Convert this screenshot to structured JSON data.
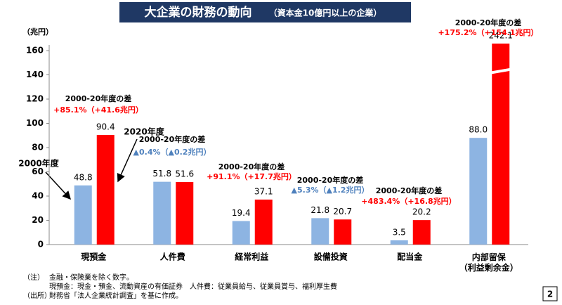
{
  "chart_data": {
    "type": "bar",
    "title": "大企業の財務の動向",
    "subtitle": "（資本金10億円以上の企業）",
    "y_unit": "（兆円）",
    "categories": [
      "現預金",
      "人件費",
      "経常利益",
      "設備投資",
      "配当金",
      "内部留保（利益剰余金）"
    ],
    "series": [
      {
        "name": "2000年度",
        "color": "#8db4e2",
        "values": [
          48.8,
          51.8,
          19.4,
          21.8,
          3.5,
          88.0
        ],
        "value_labels": [
          "48.8",
          "51.8",
          "19.4",
          "21.8",
          "3.5",
          "88.0"
        ]
      },
      {
        "name": "2020年度",
        "color": "#ff0000",
        "values": [
          90.4,
          51.6,
          37.1,
          20.7,
          20.2,
          242.1
        ],
        "value_labels": [
          "90.4",
          "51.6",
          "37.1",
          "20.7",
          "20.2",
          "242.1"
        ]
      }
    ],
    "ylim": [
      0,
      160
    ],
    "yticks": [
      0,
      20,
      40,
      60,
      80,
      100,
      120,
      140,
      160
    ],
    "annotations": [
      {
        "heading": "2000-20年度の差",
        "text": "+85.1%（+41.6兆円）",
        "color": "#ff0000"
      },
      {
        "heading": "2000-20年度の差",
        "text": "▲0.4%（▲0.2兆円）",
        "color": "#4f81bd"
      },
      {
        "heading": "2000-20年度の差",
        "text": "+91.1%（+17.7兆円）",
        "color": "#ff0000"
      },
      {
        "heading": "2000-20年度の差",
        "text": "▲5.3%（▲1.2兆円）",
        "color": "#4f81bd"
      },
      {
        "heading": "2000-20年度の差",
        "text": "+483.4%（+16.8兆円）",
        "color": "#ff0000"
      },
      {
        "heading": "2000-20年度の差",
        "text": "+175.2%（+154.1兆円）",
        "color": "#ff0000"
      }
    ],
    "notes": [
      {
        "label": "（注）",
        "text": "金融・保険業を除く数字。"
      },
      {
        "label": "",
        "text": "現預金：現金・預金、流動資産の有価証券　人件費：従業員給与、従業員賞与、福利厚生費"
      },
      {
        "label": "（出所）",
        "text": "財務省「法人企業統計調査」を基に作成。"
      }
    ],
    "page_number": "2"
  }
}
